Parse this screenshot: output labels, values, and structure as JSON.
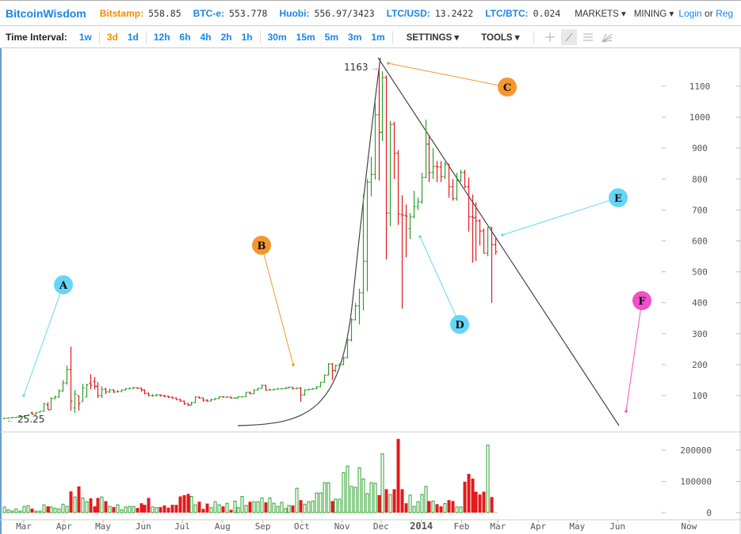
{
  "header": {
    "brand": "BitcoinWisdom",
    "exchanges": [
      {
        "label": "Bitstamp:",
        "value": "558.85",
        "color": "#f08c00"
      },
      {
        "label": "BTC-e:",
        "value": "553.778",
        "color": "#1a86e8"
      },
      {
        "label": "Huobi:",
        "value": "556.97/3423",
        "color": "#1a86e8"
      },
      {
        "label": "LTC/USD:",
        "value": "13.2422",
        "color": "#1a86e8"
      },
      {
        "label": "LTC/BTC:",
        "value": "0.024",
        "color": "#1a86e8"
      }
    ],
    "markets": "MARKETS ▾",
    "mining": "MINING ▾",
    "login": "Login",
    "or": "or",
    "register": "Reg"
  },
  "toolbar": {
    "time_interval_label": "Time Interval:",
    "intervals": [
      "1w",
      "3d",
      "1d",
      "12h",
      "6h",
      "4h",
      "2h",
      "1h",
      "30m",
      "15m",
      "5m",
      "3m",
      "1m"
    ],
    "active_interval": "3d",
    "settings": "SETTINGS ▾",
    "tools": "TOOLS ▾",
    "tool_icons": [
      "crosshair-icon",
      "trend-line-icon",
      "horizontal-lines-icon",
      "fan-icon"
    ],
    "active_tool": "trend-line-icon"
  },
  "colors": {
    "up": "#2ca02c",
    "down": "#e41a1c",
    "brand": "#1a86e8",
    "accent": "#f08c00"
  },
  "chart_data": {
    "type": "ohlc",
    "interval": "3d",
    "y_ticks": [
      100,
      200,
      300,
      400,
      500,
      600,
      700,
      800,
      900,
      1000,
      1100
    ],
    "volume_ticks": [
      0,
      100000,
      200000
    ],
    "x_tick_labels": [
      {
        "label": "Mar",
        "date": "2013-03-01"
      },
      {
        "label": "Apr",
        "date": "2013-04-01"
      },
      {
        "label": "May",
        "date": "2013-05-01"
      },
      {
        "label": "Jun",
        "date": "2013-06-01"
      },
      {
        "label": "Jul",
        "date": "2013-07-01"
      },
      {
        "label": "Aug",
        "date": "2013-08-01"
      },
      {
        "label": "Sep",
        "date": "2013-09-01"
      },
      {
        "label": "Oct",
        "date": "2013-10-01"
      },
      {
        "label": "Nov",
        "date": "2013-11-01"
      },
      {
        "label": "Dec",
        "date": "2013-12-01"
      },
      {
        "label": "2014",
        "date": "2014-01-01"
      },
      {
        "label": "Feb",
        "date": "2014-02-01"
      },
      {
        "label": "Mar",
        "date": "2014-03-01"
      },
      {
        "label": "Apr",
        "date": "2014-04-01"
      },
      {
        "label": "May",
        "date": "2014-05-01"
      },
      {
        "label": "Jun",
        "date": "2014-06-01"
      },
      {
        "label": "Now",
        "date": "2014-07-26"
      }
    ],
    "high_label": "1163",
    "low_label": "25.25",
    "annotations": [
      "A",
      "B",
      "C",
      "D",
      "E",
      "F"
    ],
    "annotation_colors": {
      "A": "#66d6f8",
      "B": "#f7962f",
      "C": "#f7962f",
      "D": "#66d6f8",
      "E": "#66d6f8",
      "F": "#f050c8"
    },
    "bars": [
      [
        "2013-02-14",
        25,
        28,
        25,
        27
      ],
      [
        "2013-02-17",
        27,
        29,
        26,
        28
      ],
      [
        "2013-02-20",
        28,
        30,
        27,
        29
      ],
      [
        "2013-02-23",
        29,
        31,
        28,
        30
      ],
      [
        "2013-02-26",
        30,
        33,
        29,
        32
      ],
      [
        "2013-03-01",
        32,
        36,
        31,
        35
      ],
      [
        "2013-03-04",
        35,
        40,
        33,
        37
      ],
      [
        "2013-03-07",
        44,
        48,
        38,
        40
      ],
      [
        "2013-03-10",
        40,
        47,
        39,
        46
      ],
      [
        "2013-03-13",
        46,
        50,
        45,
        49
      ],
      [
        "2013-03-16",
        49,
        76,
        48,
        74
      ],
      [
        "2013-03-19",
        70,
        79,
        54,
        54
      ],
      [
        "2013-03-22",
        54,
        95,
        54,
        90
      ],
      [
        "2013-03-25",
        90,
        100,
        88,
        95
      ],
      [
        "2013-03-28",
        95,
        120,
        93,
        115
      ],
      [
        "2013-03-31",
        115,
        150,
        112,
        141
      ],
      [
        "2013-04-03",
        141,
        197,
        135,
        184
      ],
      [
        "2013-04-06",
        184,
        258,
        51,
        82
      ],
      [
        "2013-04-09",
        60,
        118,
        44,
        105
      ],
      [
        "2013-04-12",
        100,
        100,
        51,
        74
      ],
      [
        "2013-04-15",
        80,
        138,
        80,
        125
      ],
      [
        "2013-04-18",
        95,
        138,
        95,
        135
      ],
      [
        "2013-04-21",
        140,
        169,
        120,
        133
      ],
      [
        "2013-04-24",
        145,
        160,
        120,
        130
      ],
      [
        "2013-04-27",
        130,
        143,
        92,
        100
      ],
      [
        "2013-04-30",
        100,
        130,
        92,
        120
      ],
      [
        "2013-05-03",
        120,
        125,
        105,
        112
      ],
      [
        "2013-05-06",
        112,
        122,
        108,
        118
      ],
      [
        "2013-05-09",
        118,
        120,
        108,
        112
      ],
      [
        "2013-05-12",
        112,
        118,
        110,
        113
      ],
      [
        "2013-05-15",
        113,
        120,
        112,
        118
      ],
      [
        "2013-05-18",
        118,
        124,
        116,
        122
      ],
      [
        "2013-05-21",
        122,
        126,
        120,
        124
      ],
      [
        "2013-05-24",
        124,
        128,
        122,
        125
      ],
      [
        "2013-05-27",
        125,
        127,
        122,
        124
      ],
      [
        "2013-05-30",
        124,
        126,
        112,
        118
      ],
      [
        "2013-06-02",
        118,
        120,
        104,
        107
      ],
      [
        "2013-06-05",
        107,
        110,
        98,
        100
      ],
      [
        "2013-06-08",
        100,
        104,
        96,
        100
      ],
      [
        "2013-06-11",
        100,
        105,
        98,
        102
      ],
      [
        "2013-06-14",
        102,
        104,
        97,
        100
      ],
      [
        "2013-06-17",
        100,
        102,
        95,
        98
      ],
      [
        "2013-06-20",
        98,
        100,
        92,
        95
      ],
      [
        "2013-06-23",
        95,
        97,
        90,
        92
      ],
      [
        "2013-06-26",
        92,
        94,
        85,
        87
      ],
      [
        "2013-06-29",
        87,
        90,
        80,
        82
      ],
      [
        "2013-07-02",
        82,
        84,
        70,
        74
      ],
      [
        "2013-07-05",
        74,
        76,
        66,
        69
      ],
      [
        "2013-07-08",
        69,
        80,
        68,
        77
      ],
      [
        "2013-07-11",
        77,
        98,
        76,
        95
      ],
      [
        "2013-07-14",
        95,
        97,
        90,
        92
      ],
      [
        "2013-07-17",
        92,
        94,
        80,
        85
      ],
      [
        "2013-07-20",
        85,
        88,
        80,
        82
      ],
      [
        "2013-07-23",
        82,
        90,
        81,
        87
      ],
      [
        "2013-07-26",
        87,
        92,
        86,
        90
      ],
      [
        "2013-07-29",
        90,
        98,
        89,
        96
      ],
      [
        "2013-08-01",
        96,
        98,
        93,
        95
      ],
      [
        "2013-08-04",
        95,
        97,
        93,
        95
      ],
      [
        "2013-08-07",
        95,
        97,
        90,
        92
      ],
      [
        "2013-08-10",
        92,
        94,
        90,
        92
      ],
      [
        "2013-08-13",
        92,
        98,
        91,
        96
      ],
      [
        "2013-08-16",
        96,
        98,
        94,
        96
      ],
      [
        "2013-08-19",
        96,
        112,
        95,
        110
      ],
      [
        "2013-08-22",
        110,
        113,
        104,
        106
      ],
      [
        "2013-08-25",
        106,
        120,
        105,
        118
      ],
      [
        "2013-08-28",
        118,
        125,
        116,
        123
      ],
      [
        "2013-08-31",
        123,
        136,
        122,
        133
      ],
      [
        "2013-09-03",
        133,
        135,
        115,
        118
      ],
      [
        "2013-09-06",
        118,
        122,
        116,
        118
      ],
      [
        "2013-09-09",
        118,
        122,
        117,
        120
      ],
      [
        "2013-09-12",
        120,
        124,
        119,
        122
      ],
      [
        "2013-09-15",
        122,
        124,
        120,
        122
      ],
      [
        "2013-09-18",
        122,
        127,
        121,
        125
      ],
      [
        "2013-09-21",
        125,
        129,
        124,
        127
      ],
      [
        "2013-09-24",
        127,
        128,
        120,
        122
      ],
      [
        "2013-09-27",
        122,
        126,
        121,
        124
      ],
      [
        "2013-09-30",
        124,
        128,
        80,
        102
      ],
      [
        "2013-10-03",
        102,
        120,
        100,
        118
      ],
      [
        "2013-10-06",
        118,
        122,
        117,
        120
      ],
      [
        "2013-10-09",
        120,
        124,
        119,
        122
      ],
      [
        "2013-10-12",
        122,
        130,
        121,
        128
      ],
      [
        "2013-10-15",
        128,
        145,
        127,
        143
      ],
      [
        "2013-10-18",
        143,
        168,
        142,
        166
      ],
      [
        "2013-10-21",
        166,
        205,
        165,
        202
      ],
      [
        "2013-10-24",
        202,
        205,
        150,
        181
      ],
      [
        "2013-10-27",
        181,
        200,
        175,
        197
      ],
      [
        "2013-10-30",
        197,
        205,
        190,
        200
      ],
      [
        "2013-11-02",
        200,
        225,
        198,
        222
      ],
      [
        "2013-11-05",
        222,
        290,
        220,
        280
      ],
      [
        "2013-11-08",
        280,
        350,
        275,
        345
      ],
      [
        "2013-11-11",
        345,
        400,
        343,
        390
      ],
      [
        "2013-11-14",
        390,
        445,
        330,
        432
      ],
      [
        "2013-11-17",
        432,
        750,
        375,
        534
      ],
      [
        "2013-11-20",
        534,
        800,
        437,
        790
      ],
      [
        "2013-11-23",
        790,
        872,
        744,
        815
      ],
      [
        "2013-11-26",
        815,
        1046,
        798,
        1008
      ],
      [
        "2013-11-29",
        1008,
        1163,
        795,
        951
      ],
      [
        "2013-12-02",
        951,
        1148,
        923,
        1128
      ],
      [
        "2013-12-05",
        1128,
        1135,
        540,
        690
      ],
      [
        "2013-12-08",
        690,
        987,
        647,
        977
      ],
      [
        "2013-12-11",
        977,
        985,
        800,
        883
      ],
      [
        "2013-12-14",
        883,
        893,
        652,
        686
      ],
      [
        "2013-12-17",
        686,
        747,
        381,
        683
      ],
      [
        "2013-12-20",
        683,
        718,
        547,
        680
      ],
      [
        "2013-12-23",
        640,
        690,
        606,
        678
      ],
      [
        "2013-12-26",
        678,
        762,
        673,
        711
      ],
      [
        "2013-12-29",
        711,
        740,
        700,
        726
      ],
      [
        "2014-01-01",
        726,
        820,
        720,
        805
      ],
      [
        "2014-01-04",
        805,
        992,
        803,
        913
      ],
      [
        "2014-01-07",
        913,
        940,
        790,
        821
      ],
      [
        "2014-01-10",
        821,
        900,
        800,
        841
      ],
      [
        "2014-01-13",
        841,
        858,
        790,
        839
      ],
      [
        "2014-01-16",
        839,
        858,
        790,
        808
      ],
      [
        "2014-01-19",
        808,
        855,
        800,
        847
      ],
      [
        "2014-01-22",
        847,
        850,
        740,
        775
      ],
      [
        "2014-01-25",
        775,
        800,
        730,
        737
      ],
      [
        "2014-01-28",
        737,
        820,
        730,
        795
      ],
      [
        "2014-01-31",
        795,
        830,
        790,
        821
      ],
      [
        "2014-02-03",
        821,
        830,
        770,
        775
      ],
      [
        "2014-02-06",
        775,
        805,
        630,
        678
      ],
      [
        "2014-02-09",
        678,
        750,
        530,
        675
      ],
      [
        "2014-02-12",
        675,
        725,
        535,
        665
      ],
      [
        "2014-02-15",
        665,
        670,
        585,
        632
      ],
      [
        "2014-02-18",
        632,
        640,
        560,
        560
      ],
      [
        "2014-02-21",
        560,
        645,
        550,
        644
      ],
      [
        "2014-02-24",
        644,
        645,
        400,
        588
      ],
      [
        "2014-02-27",
        588,
        610,
        555,
        565
      ]
    ],
    "volume": [
      18000,
      9000,
      5000,
      12000,
      5000,
      20000,
      22000,
      13000,
      5000,
      5000,
      25000,
      20000,
      18000,
      14000,
      12000,
      27000,
      20000,
      68000,
      50000,
      84000,
      47000,
      35000,
      46000,
      20000,
      47000,
      50000,
      37000,
      20000,
      18000,
      25000,
      9000,
      18000,
      20000,
      20000,
      15000,
      30000,
      25000,
      47000,
      18000,
      16000,
      18000,
      23000,
      16000,
      25000,
      25000,
      52000,
      56000,
      60000,
      52000,
      25000,
      35000,
      12000,
      29000,
      16000,
      35000,
      25000,
      20000,
      30000,
      9000,
      37000,
      16000,
      52000,
      23000,
      35000,
      35000,
      35000,
      47000,
      33000,
      47000,
      30000,
      20000,
      33000,
      13000,
      23000,
      23000,
      78000,
      40000,
      27000,
      35000,
      37000,
      63000,
      63000,
      96000,
      96000,
      37000,
      43000,
      43000,
      128000,
      149000,
      84000,
      81000,
      144000,
      108000,
      61000,
      96000,
      94000,
      56000,
      188000,
      75000,
      58000,
      75000,
      236000,
      75000,
      30000,
      56000,
      20000,
      35000,
      58000,
      84000,
      37000,
      37000,
      27000,
      20000,
      29000,
      40000,
      37000,
      18000,
      18000,
      99000,
      124000,
      109000,
      67000,
      58000,
      67000,
      216000,
      50000,
      1000
    ]
  }
}
